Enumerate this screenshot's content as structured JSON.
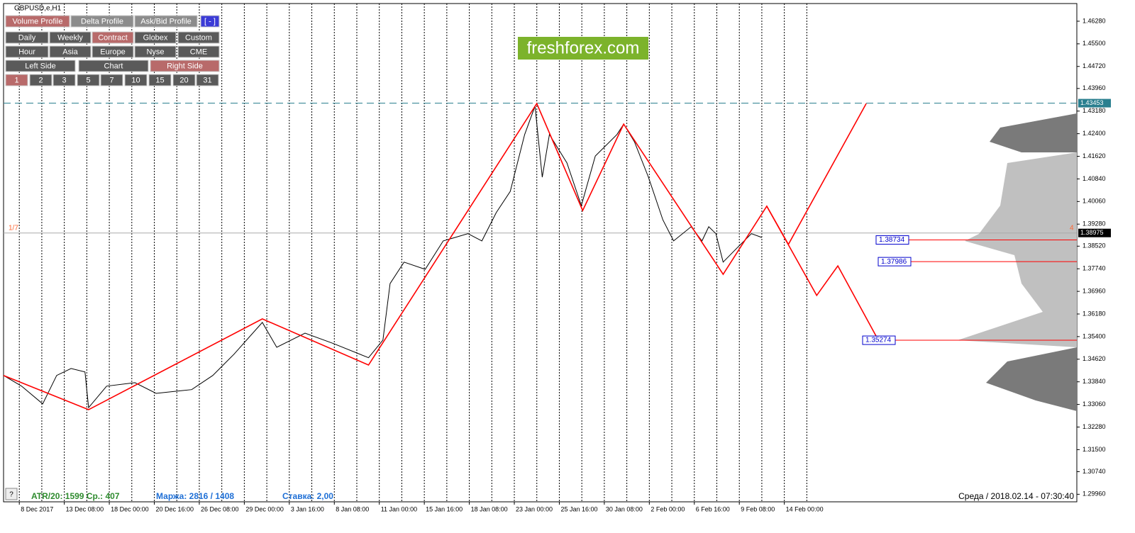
{
  "window_title": "GBPUSD,e,H1",
  "toolbar": [
    [
      {
        "label": "Volume Profile",
        "active": true
      },
      {
        "label": "Delta Profile"
      },
      {
        "label": "Ask/Bid Profile"
      },
      {
        "label": "[ - ]",
        "accent": true
      }
    ],
    [
      {
        "label": "Daily"
      },
      {
        "label": "Weekly"
      },
      {
        "label": "Contract",
        "active": true
      },
      {
        "label": "Globex"
      },
      {
        "label": "Custom"
      }
    ],
    [
      {
        "label": "Hour"
      },
      {
        "label": "Asia"
      },
      {
        "label": "Europe"
      },
      {
        "label": "Nyse"
      },
      {
        "label": "CME"
      }
    ],
    [
      {
        "label": "Left Side"
      },
      {
        "label": "Chart"
      },
      {
        "label": "Right Side",
        "active": true
      }
    ],
    [
      {
        "label": "1",
        "active": true
      },
      {
        "label": "2"
      },
      {
        "label": "3"
      },
      {
        "label": "5"
      },
      {
        "label": "7"
      },
      {
        "label": "10"
      },
      {
        "label": "15"
      },
      {
        "label": "20"
      },
      {
        "label": "31"
      }
    ]
  ],
  "watermark": "freshforex.com",
  "left_marker": "1/7",
  "right_marker": "4",
  "help": "?",
  "status": {
    "atr": "ATR/20: 1599  Ср.: 407",
    "margin": "Маржа: 2816 / 1408",
    "rate": "Ставка: 2,00",
    "time": "Среда  /  2018.02.14  -  07:30:40"
  },
  "chart_data": {
    "type": "line",
    "xlim": [
      -0.35,
      23.5
    ],
    "xticks": [
      {
        "value": 0,
        "label": "8 Dec 2017"
      },
      {
        "value": 1,
        "label": "13 Dec 08:00"
      },
      {
        "value": 2,
        "label": "18 Dec 00:00"
      },
      {
        "value": 3,
        "label": "20 Dec 16:00"
      },
      {
        "value": 4,
        "label": "26 Dec 08:00"
      },
      {
        "value": 5,
        "label": "29 Dec 00:00"
      },
      {
        "value": 6,
        "label": "3 Jan 16:00"
      },
      {
        "value": 7,
        "label": "8 Jan 08:00"
      },
      {
        "value": 8,
        "label": "11 Jan 00:00"
      },
      {
        "value": 9,
        "label": "15 Jan 16:00"
      },
      {
        "value": 10,
        "label": "18 Jan 08:00"
      },
      {
        "value": 11,
        "label": "23 Jan 00:00"
      },
      {
        "value": 12,
        "label": "25 Jan 16:00"
      },
      {
        "value": 13,
        "label": "30 Jan 08:00"
      },
      {
        "value": 14,
        "label": "2 Feb 00:00"
      },
      {
        "value": 15,
        "label": "6 Feb 16:00"
      },
      {
        "value": 16,
        "label": "9 Feb 08:00"
      },
      {
        "value": 17,
        "label": "14 Feb 00:00"
      }
    ],
    "ylim": [
      1.297,
      1.4689
    ],
    "yticks": [
      {
        "value": 1.4628,
        "label": "1.46280"
      },
      {
        "value": 1.455,
        "label": "1.45500"
      },
      {
        "value": 1.4472,
        "label": "1.44720"
      },
      {
        "value": 1.4396,
        "label": "1.43960"
      },
      {
        "value": 1.4318,
        "label": "1.43180"
      },
      {
        "value": 1.424,
        "label": "1.42400"
      },
      {
        "value": 1.4162,
        "label": "1.41620"
      },
      {
        "value": 1.4084,
        "label": "1.40840"
      },
      {
        "value": 1.4006,
        "label": "1.40060"
      },
      {
        "value": 1.3928,
        "label": "1.39280"
      },
      {
        "value": 1.3852,
        "label": "1.38520"
      },
      {
        "value": 1.3774,
        "label": "1.37740"
      },
      {
        "value": 1.3696,
        "label": "1.36960"
      },
      {
        "value": 1.3618,
        "label": "1.36180"
      },
      {
        "value": 1.354,
        "label": "1.35400"
      },
      {
        "value": 1.3462,
        "label": "1.34620"
      },
      {
        "value": 1.3384,
        "label": "1.33840"
      },
      {
        "value": 1.3306,
        "label": "1.33060"
      },
      {
        "value": 1.3228,
        "label": "1.32280"
      },
      {
        "value": 1.315,
        "label": "1.31500"
      },
      {
        "value": 1.3074,
        "label": "1.30740"
      },
      {
        "value": 1.2996,
        "label": "1.29960"
      }
    ],
    "series": [
      {
        "color": "#000000",
        "x": [
          -0.35,
          0.05,
          0.52,
          0.83,
          1.15,
          1.46,
          1.54,
          1.94,
          2.57,
          3.04,
          3.83,
          4.3,
          4.77,
          5.4,
          5.72,
          6.35,
          6.98,
          7.76,
          8.08,
          8.24,
          8.55,
          9.02,
          9.42,
          9.97,
          10.28,
          10.6,
          10.91,
          11.23,
          11.46,
          11.62,
          11.78,
          12.17,
          12.49,
          12.8,
          13.28,
          13.43,
          13.67,
          13.98,
          14.3,
          14.54,
          14.93,
          15.17,
          15.32,
          15.48,
          15.64,
          15.95,
          16.27,
          16.5
        ],
        "values": [
          1.3406,
          1.3369,
          1.3308,
          1.3406,
          1.343,
          1.3418,
          1.3295,
          1.3369,
          1.3381,
          1.3344,
          1.3357,
          1.3406,
          1.3479,
          1.3589,
          1.3503,
          1.3552,
          1.3516,
          1.3467,
          1.3528,
          1.3723,
          1.3797,
          1.3772,
          1.387,
          1.3895,
          1.387,
          1.3968,
          1.4041,
          1.4237,
          1.4335,
          1.409,
          1.4237,
          1.4139,
          1.3992,
          1.4163,
          1.4237,
          1.4273,
          1.4212,
          1.409,
          1.3943,
          1.387,
          1.3919,
          1.387,
          1.3919,
          1.3895,
          1.3797,
          1.3846,
          1.3895,
          1.3882
        ]
      },
      {
        "color": "#ff0000",
        "x": [
          -0.35,
          1.54,
          5.4,
          7.76,
          11.5,
          12.52,
          13.43,
          15.64,
          16.61,
          17.09,
          18.82
        ],
        "values": [
          1.3406,
          1.3288,
          1.3601,
          1.3442,
          1.4344,
          1.3975,
          1.4273,
          1.3755,
          1.399,
          1.3858,
          1.4344
        ]
      },
      {
        "color": "#ff0000",
        "x": [
          16.61,
          17.72,
          18.19,
          19.07
        ],
        "values": [
          1.399,
          1.3682,
          1.3784,
          1.3533
        ]
      }
    ],
    "levels": [
      {
        "value": 1.43453,
        "label": "1.43453",
        "style": "dashed",
        "color": "#2a7f8f"
      },
      {
        "value": 1.38975,
        "label": "1.38975",
        "style": "solid",
        "color": "#aaaaaa"
      }
    ],
    "price_labels": [
      {
        "value": 1.38734,
        "label": "1.38734"
      },
      {
        "value": 1.37986,
        "label": "1.37986"
      },
      {
        "value": 1.35274,
        "label": "1.35274"
      }
    ]
  }
}
